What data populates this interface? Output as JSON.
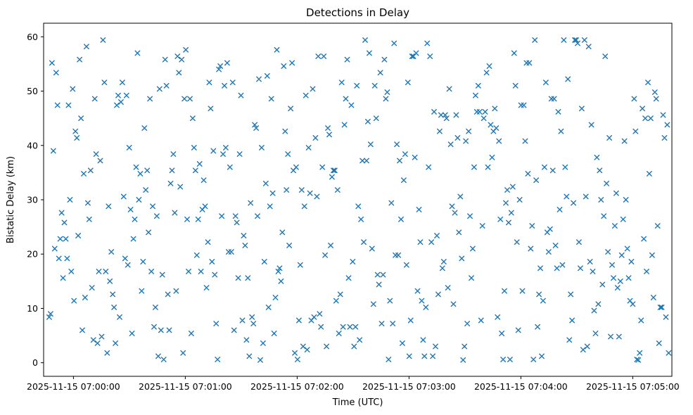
{
  "chart_data": {
    "type": "scatter",
    "title": "Detections in Delay",
    "xlabel": "Time (UTC)",
    "ylabel": "Bistatic Delay (km)",
    "marker": "x",
    "marker_color": "#1f77b4",
    "x_unit": "seconds after 2025-11-15 07:00:00 UTC",
    "x_tick_seconds": [
      0,
      60,
      120,
      180,
      240,
      300
    ],
    "x_tick_labels": [
      "2025-11-15 07:00:00",
      "2025-11-15 07:01:00",
      "2025-11-15 07:02:00",
      "2025-11-15 07:03:00",
      "2025-11-15 07:04:00",
      "2025-11-15 07:05:00"
    ],
    "y_ticks": [
      0,
      10,
      20,
      30,
      40,
      50,
      60
    ],
    "y_tick_labels": [
      "0",
      "10",
      "20",
      "30",
      "40",
      "50",
      "60"
    ],
    "xlim_seconds": [
      -16,
      321
    ],
    "ylim": [
      -2.5,
      62.5
    ],
    "grid": false,
    "legend": false,
    "point_count": 450,
    "x_seconds": [
      -13,
      -12.26,
      -11.52,
      -10.78,
      -10.04,
      -9.3,
      -8.56,
      -7.82,
      -7.08,
      -6.34,
      -5.6,
      -4.86,
      -4.12,
      -3.38,
      -2.64,
      -1.9,
      -1.16,
      -0.42,
      0.32,
      1.06,
      1.8,
      2.54,
      3.28,
      4.02,
      4.76,
      5.5,
      6.24,
      6.98,
      7.72,
      8.46,
      9.2,
      9.94,
      10.68,
      11.42,
      12.16,
      12.9,
      13.64,
      14.38,
      15.12,
      15.86,
      16.6,
      17.34,
      18.08,
      18.82,
      19.56,
      20.3,
      21.04,
      21.78,
      22.52,
      23.26,
      24,
      24.74,
      25.48,
      26.22,
      26.96,
      27.7,
      28.44,
      29.18,
      29.92,
      30.66,
      31.4,
      32.14,
      32.88,
      33.62,
      34.36,
      35.1,
      35.84,
      36.58,
      37.32,
      38.06,
      38.8,
      39.54,
      40.28,
      41.02,
      41.76,
      42.5,
      43.24,
      43.98,
      44.72,
      45.46,
      46.2,
      46.94,
      47.68,
      48.42,
      49.16,
      49.9,
      50.64,
      51.38,
      52.12,
      52.86,
      53.6,
      54.34,
      55.08,
      55.82,
      56.56,
      57.3,
      58.04,
      58.78,
      59.52,
      60.26,
      61,
      61.74,
      62.48,
      63.22,
      63.96,
      64.7,
      65.44,
      66.18,
      66.92,
      67.66,
      68.4,
      69.14,
      69.88,
      70.62,
      71.36,
      72.1,
      72.84,
      73.58,
      74.32,
      75.06,
      75.8,
      76.54,
      77.28,
      78.02,
      78.76,
      79.5,
      80.24,
      80.98,
      81.72,
      82.46,
      83.2,
      83.94,
      84.68,
      85.42,
      86.16,
      86.9,
      87.64,
      88.38,
      89.12,
      89.86,
      90.6,
      91.34,
      92.08,
      92.82,
      93.56,
      94.3,
      95.04,
      95.78,
      96.52,
      97.26,
      98,
      98.74,
      99.48,
      100.22,
      100.96,
      101.7,
      102.44,
      103.18,
      103.92,
      104.66,
      105.4,
      106.14,
      106.88,
      107.62,
      108.36,
      109.1,
      109.84,
      110.58,
      111.32,
      112.06,
      112.8,
      113.54,
      114.28,
      115.02,
      115.76,
      116.5,
      117.24,
      117.98,
      118.72,
      119.46,
      120.2,
      120.94,
      121.68,
      122.42,
      123.16,
      123.9,
      124.64,
      125.38,
      126.12,
      126.86,
      127.6,
      128.34,
      129.08,
      129.82,
      130.56,
      131.3,
      132.04,
      132.78,
      133.52,
      134.26,
      135,
      135.74,
      136.48,
      137.22,
      137.96,
      138.7,
      139.44,
      140.18,
      140.92,
      141.66,
      142.4,
      143.14,
      143.88,
      144.62,
      145.36,
      146.1,
      146.84,
      147.58,
      148.32,
      149.06,
      149.8,
      150.54,
      151.28,
      152.02,
      152.76,
      153.5,
      154.24,
      154.98,
      155.72,
      156.46,
      157.2,
      157.94,
      158.68,
      159.42,
      160.16,
      160.9,
      161.64,
      162.38,
      163.12,
      163.86,
      164.6,
      165.34,
      166.08,
      166.82,
      167.56,
      168.3,
      169.04,
      169.78,
      170.52,
      171.26,
      172,
      172.74,
      173.48,
      174.22,
      174.96,
      175.7,
      176.44,
      177.18,
      177.92,
      178.66,
      179.4,
      180.14,
      180.88,
      181.62,
      182.36,
      183.1,
      183.84,
      184.58,
      185.32,
      186.06,
      186.8,
      187.54,
      188.28,
      189.02,
      189.76,
      190.5,
      191.24,
      191.98,
      192.72,
      193.46,
      194.2,
      194.94,
      195.68,
      196.42,
      197.16,
      197.9,
      198.64,
      199.38,
      200.12,
      200.86,
      201.6,
      202.34,
      203.08,
      203.82,
      204.56,
      205.3,
      206.04,
      206.78,
      207.52,
      208.26,
      209,
      209.74,
      210.48,
      211.22,
      211.96,
      212.7,
      213.44,
      214.18,
      214.92,
      215.66,
      216.4,
      217.14,
      217.88,
      218.62,
      219.36,
      220.1,
      220.84,
      221.58,
      222.32,
      223.06,
      223.8,
      224.54,
      225.28,
      226.02,
      226.76,
      227.5,
      228.24,
      228.98,
      229.72,
      230.46,
      231.2,
      231.94,
      232.68,
      233.42,
      234.16,
      234.9,
      235.64,
      236.38,
      237.12,
      237.86,
      238.6,
      239.34,
      240.08,
      240.82,
      241.56,
      242.3,
      243.04,
      243.78,
      244.52,
      245.26,
      246,
      246.74,
      247.48,
      248.22,
      248.96,
      249.7,
      250.44,
      251.18,
      251.92,
      252.66,
      253.4,
      254.14,
      254.88,
      255.62,
      256.36,
      257.1,
      257.84,
      258.58,
      259.32,
      260.06,
      260.8,
      261.54,
      262.28,
      263.02,
      263.76,
      264.5,
      265.24,
      265.98,
      266.72,
      267.46,
      268.2,
      268.94,
      269.68,
      270.42,
      271.16,
      271.9,
      272.64,
      273.38,
      274.12,
      274.86,
      275.6,
      276.34,
      277.08,
      277.82,
      278.56,
      279.3,
      280.04,
      280.78,
      281.52,
      282.26,
      283,
      283.74,
      284.48,
      285.22,
      285.96,
      286.7,
      287.44,
      288.18,
      288.92,
      289.66,
      290.4,
      291.14,
      291.88,
      292.62,
      293.36,
      294.1,
      294.84,
      295.58,
      296.32,
      297.06,
      297.8,
      298.54,
      299.28,
      300.02,
      300.76,
      301.5,
      302.24,
      302.98,
      303.72,
      304.46,
      305.2,
      305.94,
      306.68,
      307.42,
      308.16,
      308.9,
      309.64,
      310.38,
      311.12,
      311.86,
      312.6,
      313.34,
      314.08,
      314.82,
      315.56,
      316.3,
      317.04,
      317.78,
      318.52,
      319.26
    ],
    "y_km": [
      8.4,
      9.0,
      55.2,
      39.0,
      21.0,
      53.4,
      47.4,
      19.2,
      22.8,
      27.6,
      15.6,
      25.8,
      22.8,
      19.2,
      47.4,
      30.0,
      16.8,
      50.4,
      11.4,
      42.6,
      41.4,
      23.4,
      55.8,
      45.0,
      6.0,
      34.8,
      12.0,
      58.2,
      29.4,
      26.4,
      35.4,
      13.8,
      4.2,
      48.6,
      38.4,
      3.6,
      16.8,
      37.2,
      4.8,
      59.4,
      51.6,
      16.8,
      1.8,
      28.8,
      15.0,
      20.4,
      12.6,
      10.2,
      3.6,
      47.4,
      49.2,
      8.4,
      48.0,
      51.6,
      30.6,
      19.2,
      49.2,
      18.0,
      39.6,
      28.2,
      5.4,
      22.8,
      26.4,
      36.0,
      57.0,
      30.0,
      34.8,
      13.2,
      18.6,
      43.2,
      31.8,
      35.4,
      24.0,
      48.6,
      16.8,
      28.8,
      6.6,
      10.2,
      27.0,
      1.2,
      50.4,
      6.0,
      16.2,
      0.6,
      55.8,
      51.0,
      12.6,
      6.0,
      33.0,
      35.4,
      38.4,
      27.6,
      13.2,
      56.4,
      53.4,
      32.4,
      55.8,
      1.8,
      48.6,
      57.6,
      26.4,
      16.8,
      48.6,
      5.4,
      45.0,
      39.6,
      35.4,
      19.8,
      26.4,
      36.6,
      16.8,
      28.2,
      33.6,
      28.8,
      13.8,
      22.2,
      51.6,
      46.8,
      18.6,
      39.0,
      16.2,
      7.2,
      0.6,
      54.0,
      54.6,
      27.0,
      38.4,
      51.0,
      39.6,
      55.2,
      20.4,
      36.0,
      20.4,
      51.6,
      6.0,
      27.0,
      25.8,
      15.6,
      38.4,
      49.2,
      7.8,
      23.4,
      21.6,
      4.2,
      15.6,
      1.2,
      29.4,
      8.4,
      7.2,
      43.8,
      43.2,
      27.0,
      52.2,
      0.5,
      39.6,
      3.6,
      18.6,
      33.0,
      52.8,
      10.2,
      28.8,
      48.6,
      31.2,
      5.4,
      12.0,
      57.6,
      16.8,
      17.4,
      15.0,
      24.0,
      54.6,
      42.6,
      31.8,
      38.4,
      21.6,
      46.8,
      55.2,
      35.4,
      1.8,
      36.0,
      0.6,
      7.8,
      18.0,
      31.8,
      3.0,
      28.8,
      49.2,
      2.4,
      39.6,
      31.2,
      7.8,
      50.4,
      8.4,
      41.4,
      30.6,
      56.4,
      9.0,
      6.6,
      36.0,
      56.4,
      19.8,
      3.0,
      43.2,
      42.0,
      21.6,
      34.2,
      35.4,
      35.4,
      11.4,
      31.8,
      5.4,
      12.6,
      51.6,
      6.6,
      43.8,
      48.6,
      55.8,
      15.6,
      6.6,
      47.4,
      18.6,
      3.0,
      6.6,
      51.0,
      28.8,
      4.2,
      26.4,
      37.2,
      22.2,
      59.4,
      37.2,
      44.4,
      57.0,
      40.2,
      21.0,
      10.8,
      51.0,
      45.0,
      16.2,
      14.4,
      53.4,
      7.2,
      16.2,
      55.8,
      48.6,
      49.8,
      0.6,
      11.4,
      29.4,
      7.2,
      58.8,
      19.8,
      40.2,
      19.8,
      37.2,
      26.4,
      3.6,
      33.6,
      38.4,
      18.0,
      51.6,
      1.2,
      7.8,
      56.4,
      56.4,
      37.8,
      57.0,
      13.2,
      28.2,
      22.2,
      11.4,
      4.2,
      1.2,
      10.2,
      58.8,
      36.0,
      56.4,
      22.2,
      1.2,
      46.2,
      3.0,
      23.4,
      12.6,
      42.6,
      45.6,
      17.4,
      18.6,
      45.6,
      45.0,
      13.8,
      50.4,
      40.2,
      28.8,
      10.8,
      27.6,
      45.6,
      41.4,
      24.0,
      30.6,
      19.2,
      0.5,
      3.0,
      40.8,
      7.2,
      42.6,
      27.0,
      15.6,
      21.0,
      36.0,
      49.2,
      46.2,
      51.0,
      46.2,
      7.8,
      25.2,
      45.0,
      46.2,
      53.4,
      36.0,
      54.6,
      43.8,
      37.8,
      42.6,
      46.8,
      43.2,
      8.4,
      40.8,
      26.4,
      5.4,
      0.6,
      13.2,
      29.4,
      31.8,
      25.8,
      0.6,
      27.6,
      32.4,
      57.0,
      51.0,
      22.2,
      6.0,
      30.0,
      47.4,
      13.2,
      47.4,
      40.8,
      55.2,
      34.8,
      55.2,
      21.0,
      25.2,
      0.6,
      59.4,
      33.6,
      6.6,
      12.6,
      17.4,
      1.2,
      11.4,
      36.0,
      51.6,
      24.0,
      20.4,
      24.6,
      48.6,
      35.4,
      48.6,
      21.6,
      17.4,
      46.2,
      28.2,
      42.6,
      18.0,
      59.4,
      36.0,
      30.6,
      52.2,
      4.2,
      12.6,
      7.8,
      29.4,
      59.4,
      59.4,
      58.8,
      22.2,
      17.4,
      46.8,
      2.4,
      59.4,
      30.6,
      3.0,
      58.2,
      18.6,
      43.8,
      16.8,
      9.6,
      5.4,
      37.8,
      10.8,
      35.4,
      30.0,
      14.4,
      27.0,
      56.4,
      33.0,
      20.4,
      41.4,
      4.8,
      18.0,
      15.6,
      25.2,
      31.2,
      13.8,
      4.8,
      15.0,
      19.8,
      26.4,
      40.8,
      30.0,
      21.0,
      15.6,
      11.4,
      18.6,
      10.8,
      48.6,
      42.6,
      0.6,
      0.5,
      1.8,
      7.8,
      46.8,
      22.8,
      45.0,
      16.8,
      51.6,
      34.8,
      45.0,
      19.8,
      12.0,
      49.8,
      48.6,
      25.2,
      3.6,
      10.2,
      10.2,
      45.6,
      41.4,
      8.4,
      43.8,
      1.8
    ]
  }
}
